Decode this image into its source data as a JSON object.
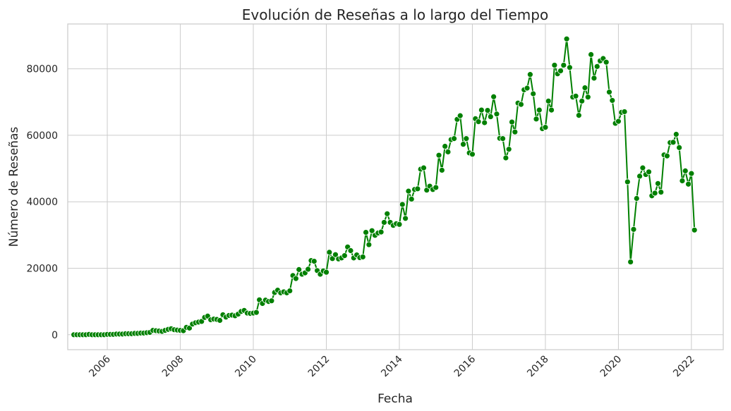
{
  "chart_data": {
    "type": "line",
    "title": "Evolución de Reseñas a lo largo del Tiempo",
    "xlabel": "Fecha",
    "ylabel": "Número de Reseñas",
    "x_ticks": [
      "2006",
      "2008",
      "2010",
      "2012",
      "2014",
      "2016",
      "2018",
      "2020",
      "2022"
    ],
    "y_ticks": [
      "0",
      "20000",
      "40000",
      "60000",
      "80000"
    ],
    "xlim": [
      "2004-12-01",
      "2022-11-15"
    ],
    "ylim": [
      -4500,
      93500
    ],
    "grid": true,
    "line_color": "#008000",
    "marker": "circle",
    "series": [
      {
        "x": [
          "2005-02",
          "2005-03",
          "2005-04",
          "2005-05",
          "2005-06",
          "2005-07",
          "2005-08",
          "2005-09",
          "2005-10",
          "2005-11",
          "2005-12",
          "2006-01",
          "2006-02",
          "2006-03",
          "2006-04",
          "2006-05",
          "2006-06",
          "2006-07",
          "2006-08",
          "2006-09",
          "2006-10",
          "2006-11",
          "2006-12",
          "2007-01",
          "2007-02",
          "2007-03",
          "2007-04",
          "2007-05",
          "2007-06",
          "2007-07",
          "2007-08",
          "2007-09",
          "2007-10",
          "2007-11",
          "2007-12",
          "2008-01",
          "2008-02",
          "2008-03",
          "2008-04",
          "2008-05",
          "2008-06",
          "2008-07",
          "2008-08",
          "2008-09",
          "2008-10",
          "2008-11",
          "2008-12",
          "2009-01",
          "2009-02",
          "2009-03",
          "2009-04",
          "2009-05",
          "2009-06",
          "2009-07",
          "2009-08",
          "2009-09",
          "2009-10",
          "2009-11",
          "2009-12",
          "2010-01",
          "2010-02",
          "2010-03",
          "2010-04",
          "2010-05",
          "2010-06",
          "2010-07",
          "2010-08",
          "2010-09",
          "2010-10",
          "2010-11",
          "2010-12",
          "2011-01",
          "2011-02",
          "2011-03",
          "2011-04",
          "2011-05",
          "2011-06",
          "2011-07",
          "2011-08",
          "2011-09",
          "2011-10",
          "2011-11",
          "2011-12",
          "2012-01",
          "2012-02",
          "2012-03",
          "2012-04",
          "2012-05",
          "2012-06",
          "2012-07",
          "2012-08",
          "2012-09",
          "2012-10",
          "2012-11",
          "2012-12",
          "2013-01",
          "2013-02",
          "2013-03",
          "2013-04",
          "2013-05",
          "2013-06",
          "2013-07",
          "2013-08",
          "2013-09",
          "2013-10",
          "2013-11",
          "2013-12",
          "2014-01",
          "2014-02",
          "2014-03",
          "2014-04",
          "2014-05",
          "2014-06",
          "2014-07",
          "2014-08",
          "2014-09",
          "2014-10",
          "2014-11",
          "2014-12",
          "2015-01",
          "2015-02",
          "2015-03",
          "2015-04",
          "2015-05",
          "2015-06",
          "2015-07",
          "2015-08",
          "2015-09",
          "2015-10",
          "2015-11",
          "2015-12",
          "2016-01",
          "2016-02",
          "2016-03",
          "2016-04",
          "2016-05",
          "2016-06",
          "2016-07",
          "2016-08",
          "2016-09",
          "2016-10",
          "2016-11",
          "2016-12",
          "2017-01",
          "2017-02",
          "2017-03",
          "2017-04",
          "2017-05",
          "2017-06",
          "2017-07",
          "2017-08",
          "2017-09",
          "2017-10",
          "2017-11",
          "2017-12",
          "2018-01",
          "2018-02",
          "2018-03",
          "2018-04",
          "2018-05",
          "2018-06",
          "2018-07",
          "2018-08",
          "2018-09",
          "2018-10",
          "2018-11",
          "2018-12",
          "2019-01",
          "2019-02",
          "2019-03",
          "2019-04",
          "2019-05",
          "2019-06",
          "2019-07",
          "2019-08",
          "2019-09",
          "2019-10",
          "2019-11",
          "2019-12",
          "2020-01",
          "2020-02",
          "2020-03",
          "2020-04",
          "2020-05",
          "2020-06",
          "2020-07",
          "2020-08",
          "2020-09",
          "2020-10",
          "2020-11",
          "2020-12",
          "2021-01",
          "2021-02",
          "2021-03",
          "2021-04",
          "2021-05",
          "2021-06",
          "2021-07",
          "2021-08",
          "2021-09",
          "2021-10",
          "2021-11",
          "2021-12",
          "2022-01",
          "2022-02"
        ],
        "y": [
          0,
          0,
          0,
          0,
          0,
          100,
          0,
          0,
          0,
          0,
          0,
          100,
          100,
          100,
          200,
          200,
          200,
          300,
          300,
          300,
          400,
          400,
          500,
          500,
          600,
          700,
          1300,
          1200,
          1100,
          1000,
          1300,
          1600,
          1800,
          1500,
          1400,
          1300,
          1200,
          2200,
          2000,
          3200,
          3600,
          3800,
          4000,
          5200,
          5600,
          4500,
          4700,
          4600,
          4300,
          6000,
          5300,
          5800,
          5900,
          5700,
          6200,
          7000,
          7300,
          6500,
          6400,
          6500,
          6700,
          10500,
          9400,
          10400,
          10000,
          10200,
          12700,
          13400,
          12600,
          12900,
          12600,
          13200,
          17800,
          16900,
          19600,
          18200,
          18600,
          19700,
          22300,
          22100,
          19300,
          18200,
          19200,
          18800,
          24800,
          22900,
          24100,
          22800,
          23100,
          23800,
          26400,
          25300,
          23100,
          24000,
          23200,
          23400,
          30800,
          27100,
          31300,
          29900,
          30600,
          30900,
          33800,
          36400,
          33800,
          32900,
          33400,
          33200,
          39200,
          35000,
          43200,
          40800,
          43700,
          43900,
          49800,
          50200,
          43500,
          44700,
          43700,
          44300,
          54000,
          49500,
          56700,
          55000,
          58700,
          59000,
          64800,
          65900,
          57300,
          59000,
          54700,
          54300,
          65000,
          64100,
          67600,
          63800,
          67500,
          65600,
          71600,
          66400,
          59100,
          59000,
          53200,
          55800,
          64000,
          61000,
          69700,
          69300,
          73700,
          74200,
          78300,
          72500,
          64900,
          67600,
          62000,
          62400,
          70300,
          67600,
          81100,
          78500,
          79400,
          81100,
          89000,
          80400,
          71500,
          71800,
          66000,
          70300,
          74300,
          71500,
          84300,
          77200,
          80700,
          82400,
          83100,
          82000,
          73000,
          70500,
          63600,
          64200,
          66900,
          67100,
          46000,
          21900,
          31700,
          41000,
          47700,
          50200,
          48200,
          49000,
          41800,
          42600,
          45500,
          42900,
          54100,
          53800,
          57800,
          57900,
          60300,
          56300,
          46300,
          49300,
          45300,
          48500,
          31500
        ]
      }
    ]
  }
}
